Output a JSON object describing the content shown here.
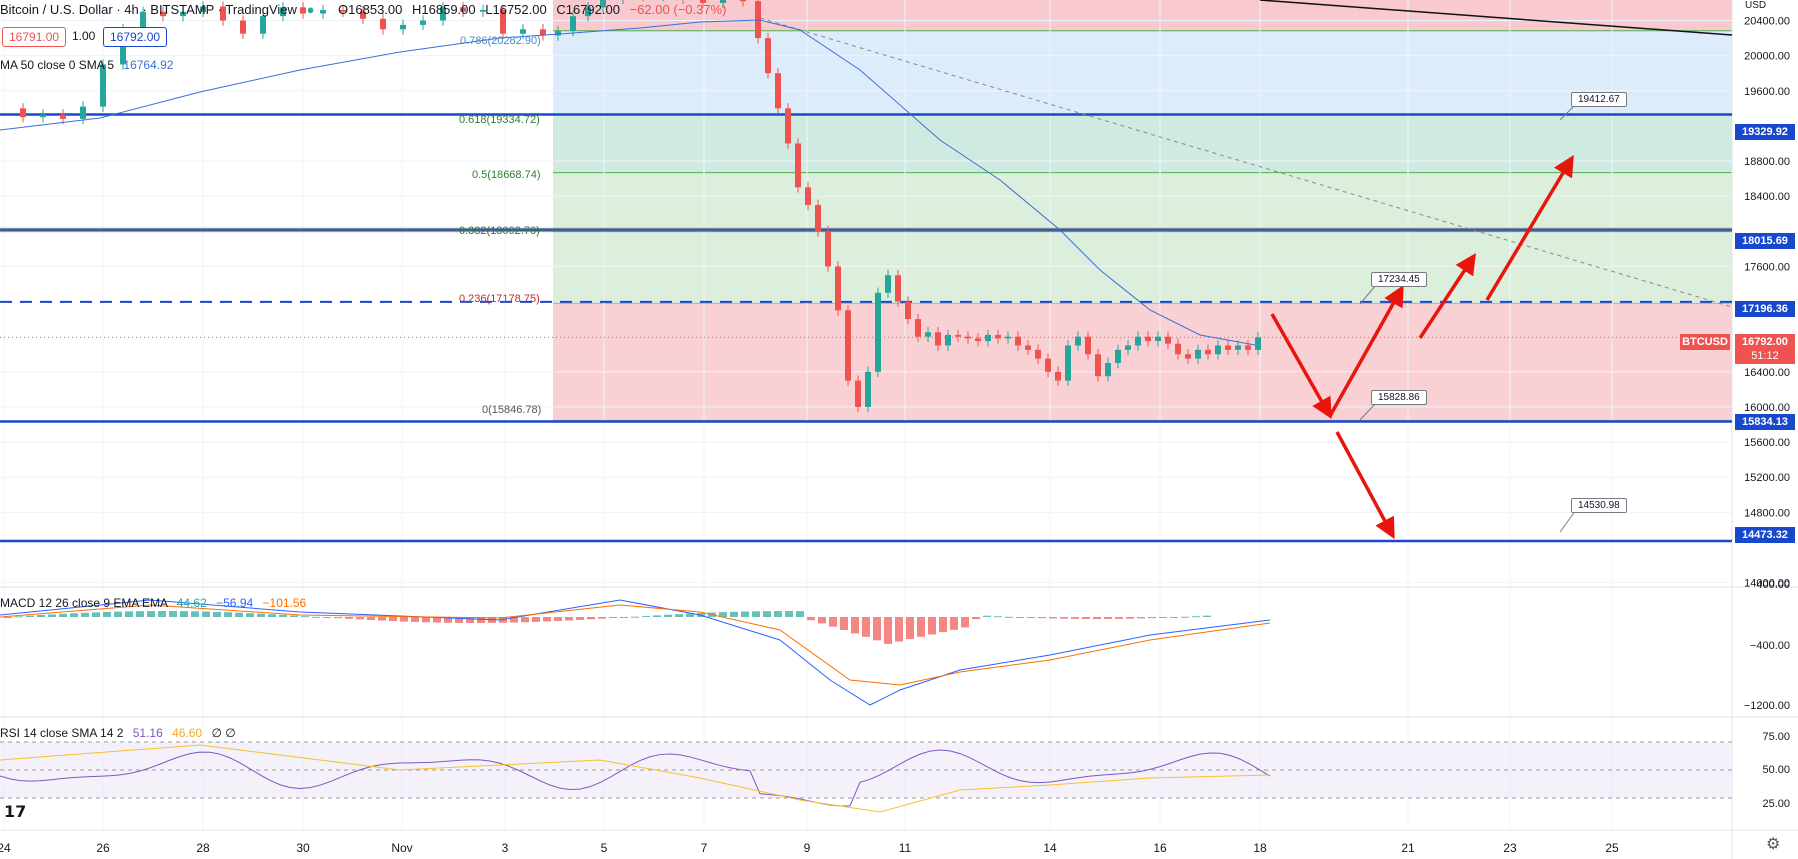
{
  "header": {
    "symbol_title": "Bitcoin / U.S. Dollar · 4h · BITSTAMP · TradingView",
    "open": "O16853.00",
    "high": "H16859.00",
    "low": "L16752.00",
    "close": "C16792.00",
    "change": "−62.00 (−0.37%)",
    "bid": "16791.00",
    "qty": "1.00",
    "ask": "16792.00",
    "ma_label": "MA 50 close 0 SMA 5",
    "ma_value": "16764.92"
  },
  "price_axis": {
    "currency": "USD",
    "ticks": [
      "20400.00",
      "20000.00",
      "19600.00",
      "18800.00",
      "18400.00",
      "17600.00",
      "16400.00",
      "16000.00",
      "15600.00",
      "15200.00",
      "14800.00",
      "14000.00"
    ],
    "badges": [
      {
        "value": "19329.92",
        "color": "#1848cc"
      },
      {
        "value": "18015.69",
        "color": "#1848cc"
      },
      {
        "value": "17196.36",
        "color": "#1848cc"
      },
      {
        "value": "15834.13",
        "color": "#1848cc"
      },
      {
        "value": "14473.32",
        "color": "#1848cc"
      }
    ],
    "current_symbol": "BTCUSD",
    "current_price": "16792.00",
    "countdown": "51:12"
  },
  "fib_levels": [
    {
      "label": "0.618(19334.72)"
    },
    {
      "label": "0.5(18668.74)"
    },
    {
      "label": "0.382(18002.76)"
    },
    {
      "label": "0.236(17178.75)"
    },
    {
      "label": "0(15846.78)"
    },
    {
      "label": "0.786(20282.90)"
    }
  ],
  "callouts": [
    "19412.67",
    "17234.45",
    "15828.86",
    "14530.98"
  ],
  "macd": {
    "label": "MACD 12 26 close 9 EMA EMA",
    "v1": "44.62",
    "v2": "−56.94",
    "v3": "−101.56",
    "ticks": [
      "400.00",
      "−400.00",
      "−1200.00"
    ]
  },
  "rsi": {
    "label": "RSI 14 close SMA 14 2",
    "v1": "51.16",
    "v2": "46.60",
    "v3": "∅ ∅",
    "ticks": [
      "75.00",
      "50.00",
      "25.00"
    ]
  },
  "time_axis": [
    "24",
    "26",
    "28",
    "30",
    "Nov",
    "3",
    "5",
    "7",
    "9",
    "11",
    "14",
    "16",
    "18",
    "21",
    "23",
    "25"
  ],
  "colors": {
    "up": "#26a69a",
    "down": "#ef5350",
    "level": "#1848cc",
    "ma": "#3a6fd8",
    "arrow": "#e8150c",
    "fib_red": "#f8c8cc",
    "fib_green": "#d6ecd6",
    "fib_teal": "#c7e6dc",
    "fib_blue": "#d7e9f9"
  },
  "chart_data": {
    "type": "candlestick",
    "title": "Bitcoin / U.S. Dollar · 4h · BITSTAMP",
    "ylim": [
      13800,
      20600
    ],
    "x_ticks": [
      "24",
      "26",
      "28",
      "30",
      "Nov",
      "3",
      "5",
      "7",
      "9",
      "11",
      "14",
      "16",
      "18",
      "21",
      "23",
      "25"
    ],
    "horizontal_levels": [
      19329.92,
      18015.69,
      17196.36,
      15834.13,
      14473.32
    ],
    "fibonacci": [
      {
        "ratio": 0.786,
        "price": 20282.9
      },
      {
        "ratio": 0.618,
        "price": 19334.72
      },
      {
        "ratio": 0.5,
        "price": 18668.74
      },
      {
        "ratio": 0.382,
        "price": 18002.76
      },
      {
        "ratio": 0.236,
        "price": 17178.75
      },
      {
        "ratio": 0,
        "price": 15846.78
      }
    ],
    "projection_targets": [
      19412.67,
      17234.45,
      15828.86,
      14530.98
    ],
    "last_price": 16792.0,
    "ohlc_last": {
      "open": 16853.0,
      "high": 16859.0,
      "low": 16752.0,
      "close": 16792.0
    }
  }
}
